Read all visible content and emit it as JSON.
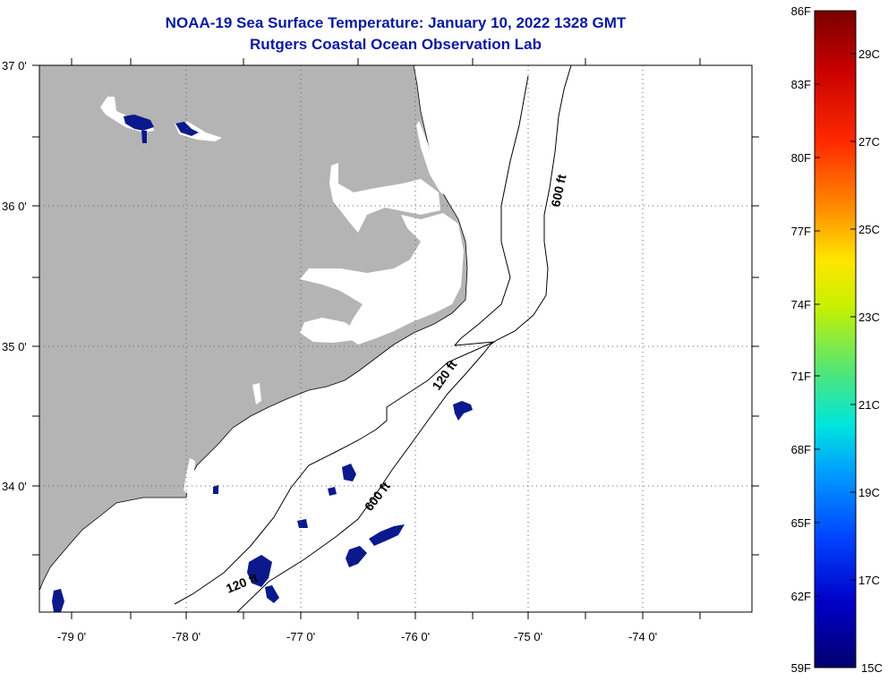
{
  "title": "NOAA-19 Sea Surface Temperature:  January 10, 2022 1328 GMT",
  "subtitle": "Rutgers Coastal Ocean Observation Lab",
  "map": {
    "lat_labels": [
      "37 0'",
      "36 0'",
      "35 0'",
      "34 0'"
    ],
    "lon_labels": [
      "-79 0'",
      "-78 0'",
      "-77 0'",
      "-76 0'",
      "-75 0'",
      "-74 0'"
    ],
    "contour_labels": [
      "600 ft",
      "120 ft",
      "600 ft",
      "120 ft"
    ],
    "colors": {
      "land": "#b4b4b4",
      "ocean": "#ffffff",
      "cold_sst": "#0a1a8c",
      "contour": "#000000"
    }
  },
  "colorbar": {
    "f_labels": [
      "86F",
      "83F",
      "80F",
      "77F",
      "74F",
      "71F",
      "68F",
      "65F",
      "62F",
      "59F"
    ],
    "c_labels": [
      "29C",
      "27C",
      "25C",
      "23C",
      "21C",
      "19C",
      "17C",
      "15C"
    ],
    "gradient_colors": [
      "#7a0000",
      "#c80000",
      "#ff2a00",
      "#ff8c00",
      "#ffe600",
      "#c8f000",
      "#50e678",
      "#00e6dc",
      "#00a0ff",
      "#0046ff",
      "#0000c8",
      "#00006e"
    ]
  }
}
